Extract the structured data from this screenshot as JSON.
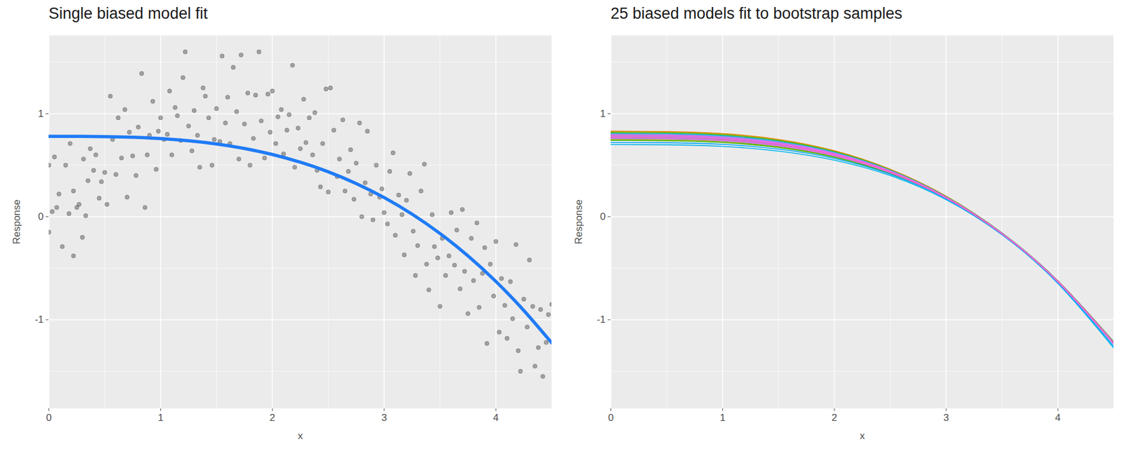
{
  "chart_data": [
    {
      "type": "scatter",
      "title": "Single biased model fit",
      "x_label": "x",
      "y_label": "Response",
      "xlim": [
        0,
        4.5
      ],
      "ylim": [
        -1.86,
        1.76
      ],
      "xticks": [
        0,
        1,
        2,
        3,
        4
      ],
      "yticks": [
        -1,
        0,
        1
      ],
      "grid": true,
      "series": [
        {
          "type": "scatter",
          "color": "#333333",
          "x": [
            0.0,
            0.0,
            0.03,
            0.05,
            0.07,
            0.09,
            0.12,
            0.15,
            0.18,
            0.19,
            0.22,
            0.22,
            0.25,
            0.27,
            0.3,
            0.31,
            0.33,
            0.35,
            0.37,
            0.4,
            0.42,
            0.45,
            0.47,
            0.5,
            0.52,
            0.55,
            0.57,
            0.6,
            0.62,
            0.65,
            0.68,
            0.7,
            0.72,
            0.75,
            0.78,
            0.8,
            0.83,
            0.86,
            0.88,
            0.9,
            0.93,
            0.96,
            0.98,
            1.0,
            1.03,
            1.06,
            1.08,
            1.1,
            1.13,
            1.15,
            1.18,
            1.2,
            1.22,
            1.25,
            1.28,
            1.3,
            1.33,
            1.35,
            1.38,
            1.4,
            1.43,
            1.46,
            1.48,
            1.5,
            1.53,
            1.55,
            1.58,
            1.6,
            1.62,
            1.65,
            1.68,
            1.7,
            1.72,
            1.75,
            1.78,
            1.8,
            1.83,
            1.85,
            1.88,
            1.9,
            1.93,
            1.96,
            1.98,
            2.0,
            2.03,
            2.05,
            2.08,
            2.1,
            2.13,
            2.15,
            2.18,
            2.2,
            2.23,
            2.25,
            2.28,
            2.3,
            2.33,
            2.36,
            2.38,
            2.4,
            2.43,
            2.45,
            2.48,
            2.5,
            2.52,
            2.55,
            2.58,
            2.6,
            2.63,
            2.65,
            2.68,
            2.7,
            2.73,
            2.75,
            2.78,
            2.8,
            2.83,
            2.85,
            2.88,
            2.9,
            2.93,
            2.96,
            2.98,
            3.0,
            3.03,
            3.05,
            3.08,
            3.1,
            3.13,
            3.16,
            3.18,
            3.2,
            3.23,
            3.26,
            3.28,
            3.3,
            3.33,
            3.36,
            3.38,
            3.4,
            3.43,
            3.45,
            3.48,
            3.5,
            3.52,
            3.55,
            3.58,
            3.6,
            3.63,
            3.65,
            3.68,
            3.7,
            3.72,
            3.75,
            3.78,
            3.8,
            3.83,
            3.85,
            3.88,
            3.9,
            3.92,
            3.95,
            3.98,
            4.0,
            4.03,
            4.05,
            4.08,
            4.1,
            4.13,
            4.15,
            4.18,
            4.2,
            4.22,
            4.25,
            4.28,
            4.3,
            4.33,
            4.35,
            4.38,
            4.4,
            4.42,
            4.45,
            4.47,
            4.5
          ],
          "values": [
            -0.15,
            0.5,
            0.05,
            0.58,
            0.09,
            0.22,
            -0.29,
            0.5,
            0.03,
            0.71,
            0.25,
            -0.38,
            0.09,
            0.12,
            -0.2,
            0.56,
            0.01,
            0.35,
            0.66,
            0.45,
            0.6,
            0.18,
            0.34,
            0.43,
            0.12,
            1.17,
            0.75,
            0.41,
            0.96,
            0.57,
            1.04,
            0.19,
            0.82,
            0.59,
            0.4,
            0.87,
            1.39,
            0.09,
            0.6,
            0.79,
            1.12,
            0.46,
            0.83,
            0.96,
            0.75,
            0.8,
            1.22,
            0.6,
            1.06,
            0.98,
            0.74,
            1.35,
            1.6,
            0.88,
            0.64,
            1.03,
            0.79,
            0.48,
            1.25,
            1.17,
            0.96,
            0.5,
            0.75,
            1.05,
            0.73,
            1.56,
            0.91,
            1.16,
            0.71,
            1.45,
            1.02,
            0.56,
            1.57,
            0.9,
            1.2,
            0.5,
            0.76,
            1.18,
            1.6,
            0.93,
            0.57,
            1.19,
            0.82,
            1.22,
            0.71,
            0.97,
            1.04,
            0.61,
            0.84,
            0.99,
            1.47,
            0.48,
            0.86,
            0.66,
            1.14,
            0.72,
            0.96,
            0.6,
            1.01,
            0.45,
            0.29,
            0.71,
            1.24,
            0.24,
            1.25,
            0.84,
            0.39,
            0.56,
            0.94,
            0.25,
            0.44,
            0.65,
            0.17,
            0.52,
            0.91,
            0.0,
            0.33,
            0.83,
            0.22,
            -0.03,
            0.5,
            0.19,
            0.27,
            0.04,
            -0.07,
            0.44,
            0.62,
            -0.18,
            0.21,
            0.02,
            -0.37,
            0.16,
            0.42,
            -0.14,
            -0.57,
            -0.28,
            0.25,
            0.51,
            -0.46,
            -0.71,
            0.02,
            -0.29,
            -0.4,
            -0.87,
            -0.21,
            -0.57,
            -0.38,
            0.04,
            -0.47,
            -0.13,
            -0.7,
            0.07,
            -0.53,
            -0.94,
            -0.21,
            -0.62,
            -0.06,
            -0.88,
            -0.55,
            -0.3,
            -1.23,
            -0.46,
            -0.77,
            -0.24,
            -1.12,
            -0.6,
            -0.86,
            -1.18,
            -0.63,
            -0.99,
            -0.27,
            -1.3,
            -1.5,
            -0.8,
            -1.07,
            -0.42,
            -0.87,
            -1.45,
            -1.27,
            -0.9,
            -1.55,
            -1.22,
            -0.95,
            -0.85
          ]
        },
        {
          "type": "line",
          "color": "#1F7BF6",
          "x": [
            0,
            0.25,
            0.5,
            0.75,
            1,
            1.25,
            1.5,
            1.75,
            2,
            2.25,
            2.5,
            2.75,
            3,
            3.25,
            3.5,
            3.75,
            4,
            4.25,
            4.5
          ],
          "values": [
            0.78,
            0.78,
            0.777,
            0.771,
            0.758,
            0.737,
            0.706,
            0.662,
            0.604,
            0.529,
            0.436,
            0.322,
            0.186,
            0.025,
            -0.163,
            -0.38,
            -0.628,
            -0.91,
            -1.225
          ]
        }
      ]
    },
    {
      "type": "line",
      "title": "25 biased models fit to bootstrap samples",
      "x_label": "x",
      "y_label": "Response",
      "xlim": [
        0,
        4.5
      ],
      "ylim": [
        -1.86,
        1.76
      ],
      "xticks": [
        0,
        1,
        2,
        3,
        4
      ],
      "yticks": [
        -1,
        0,
        1
      ],
      "grid": true,
      "x": [
        0,
        0.5,
        1,
        1.5,
        2,
        2.5,
        3,
        3.5,
        4,
        4.5
      ],
      "series": [
        {
          "color": "#F8766D",
          "values": [
            0.8,
            0.797,
            0.778,
            0.725,
            0.62,
            0.448,
            0.193,
            -0.16,
            -0.63,
            -1.235
          ]
        },
        {
          "color": "#EF7F49",
          "values": [
            0.76,
            0.757,
            0.739,
            0.689,
            0.59,
            0.426,
            0.18,
            -0.165,
            -0.625,
            -1.215
          ]
        },
        {
          "color": "#E58700",
          "values": [
            0.83,
            0.826,
            0.806,
            0.75,
            0.64,
            0.46,
            0.2,
            -0.158,
            -0.627,
            -1.23
          ]
        },
        {
          "color": "#D89000",
          "values": [
            0.79,
            0.787,
            0.768,
            0.715,
            0.611,
            0.441,
            0.188,
            -0.162,
            -0.63,
            -1.228
          ]
        },
        {
          "color": "#C99800",
          "values": [
            0.77,
            0.767,
            0.749,
            0.698,
            0.598,
            0.432,
            0.184,
            -0.164,
            -0.626,
            -1.22
          ]
        },
        {
          "color": "#B79F00",
          "values": [
            0.81,
            0.807,
            0.787,
            0.733,
            0.626,
            0.451,
            0.193,
            -0.158,
            -0.624,
            -1.222
          ]
        },
        {
          "color": "#A3A500",
          "values": [
            0.75,
            0.747,
            0.73,
            0.681,
            0.584,
            0.423,
            0.181,
            -0.166,
            -0.63,
            -1.232
          ]
        },
        {
          "color": "#8AAB00",
          "values": [
            0.78,
            0.777,
            0.758,
            0.706,
            0.604,
            0.436,
            0.186,
            -0.163,
            -0.628,
            -1.225
          ]
        },
        {
          "color": "#6BB100",
          "values": [
            0.82,
            0.816,
            0.796,
            0.741,
            0.633,
            0.455,
            0.195,
            -0.157,
            -0.622,
            -1.215
          ]
        },
        {
          "color": "#39B600",
          "values": [
            0.74,
            0.737,
            0.72,
            0.672,
            0.577,
            0.418,
            0.178,
            -0.168,
            -0.635,
            -1.24
          ]
        },
        {
          "color": "#00BA38",
          "values": [
            0.79,
            0.786,
            0.767,
            0.714,
            0.611,
            0.442,
            0.19,
            -0.16,
            -0.624,
            -1.218
          ]
        },
        {
          "color": "#00BE67",
          "values": [
            0.77,
            0.767,
            0.748,
            0.697,
            0.597,
            0.431,
            0.183,
            -0.166,
            -0.632,
            -1.232
          ]
        },
        {
          "color": "#00C08B",
          "values": [
            0.8,
            0.796,
            0.777,
            0.724,
            0.619,
            0.447,
            0.192,
            -0.161,
            -0.628,
            -1.228
          ]
        },
        {
          "color": "#00C1A9",
          "values": [
            0.76,
            0.757,
            0.74,
            0.69,
            0.592,
            0.429,
            0.184,
            -0.163,
            -0.626,
            -1.222
          ]
        },
        {
          "color": "#00C0C4",
          "values": [
            0.78,
            0.776,
            0.757,
            0.705,
            0.603,
            0.435,
            0.185,
            -0.165,
            -0.632,
            -1.236
          ]
        },
        {
          "color": "#00BCD8",
          "values": [
            0.81,
            0.806,
            0.786,
            0.732,
            0.625,
            0.45,
            0.192,
            -0.16,
            -0.627,
            -1.226
          ]
        },
        {
          "color": "#00B4EF",
          "values": [
            0.7,
            0.698,
            0.682,
            0.637,
            0.549,
            0.4,
            0.166,
            -0.175,
            -0.648,
            -1.275
          ]
        },
        {
          "color": "#00A5FF",
          "values": [
            0.72,
            0.718,
            0.702,
            0.656,
            0.566,
            0.412,
            0.174,
            -0.17,
            -0.64,
            -1.26
          ]
        },
        {
          "color": "#619CFF",
          "values": [
            0.79,
            0.787,
            0.768,
            0.716,
            0.613,
            0.443,
            0.19,
            -0.16,
            -0.625,
            -1.222
          ]
        },
        {
          "color": "#9590FF",
          "values": [
            0.77,
            0.766,
            0.747,
            0.696,
            0.596,
            0.43,
            0.182,
            -0.166,
            -0.631,
            -1.23
          ]
        },
        {
          "color": "#B983FF",
          "values": [
            0.8,
            0.797,
            0.777,
            0.723,
            0.618,
            0.446,
            0.19,
            -0.162,
            -0.629,
            -1.229
          ]
        },
        {
          "color": "#D376FF",
          "values": [
            0.76,
            0.756,
            0.738,
            0.688,
            0.59,
            0.427,
            0.181,
            -0.167,
            -0.634,
            -1.238
          ]
        },
        {
          "color": "#E76BF3",
          "values": [
            0.78,
            0.777,
            0.759,
            0.707,
            0.605,
            0.437,
            0.187,
            -0.163,
            -0.628,
            -1.225
          ]
        },
        {
          "color": "#F564E3",
          "values": [
            0.79,
            0.786,
            0.766,
            0.713,
            0.609,
            0.439,
            0.187,
            -0.163,
            -0.629,
            -1.227
          ]
        },
        {
          "color": "#FF62BC",
          "values": [
            0.77,
            0.767,
            0.749,
            0.698,
            0.598,
            0.432,
            0.184,
            -0.164,
            -0.627,
            -1.223
          ]
        }
      ]
    }
  ]
}
